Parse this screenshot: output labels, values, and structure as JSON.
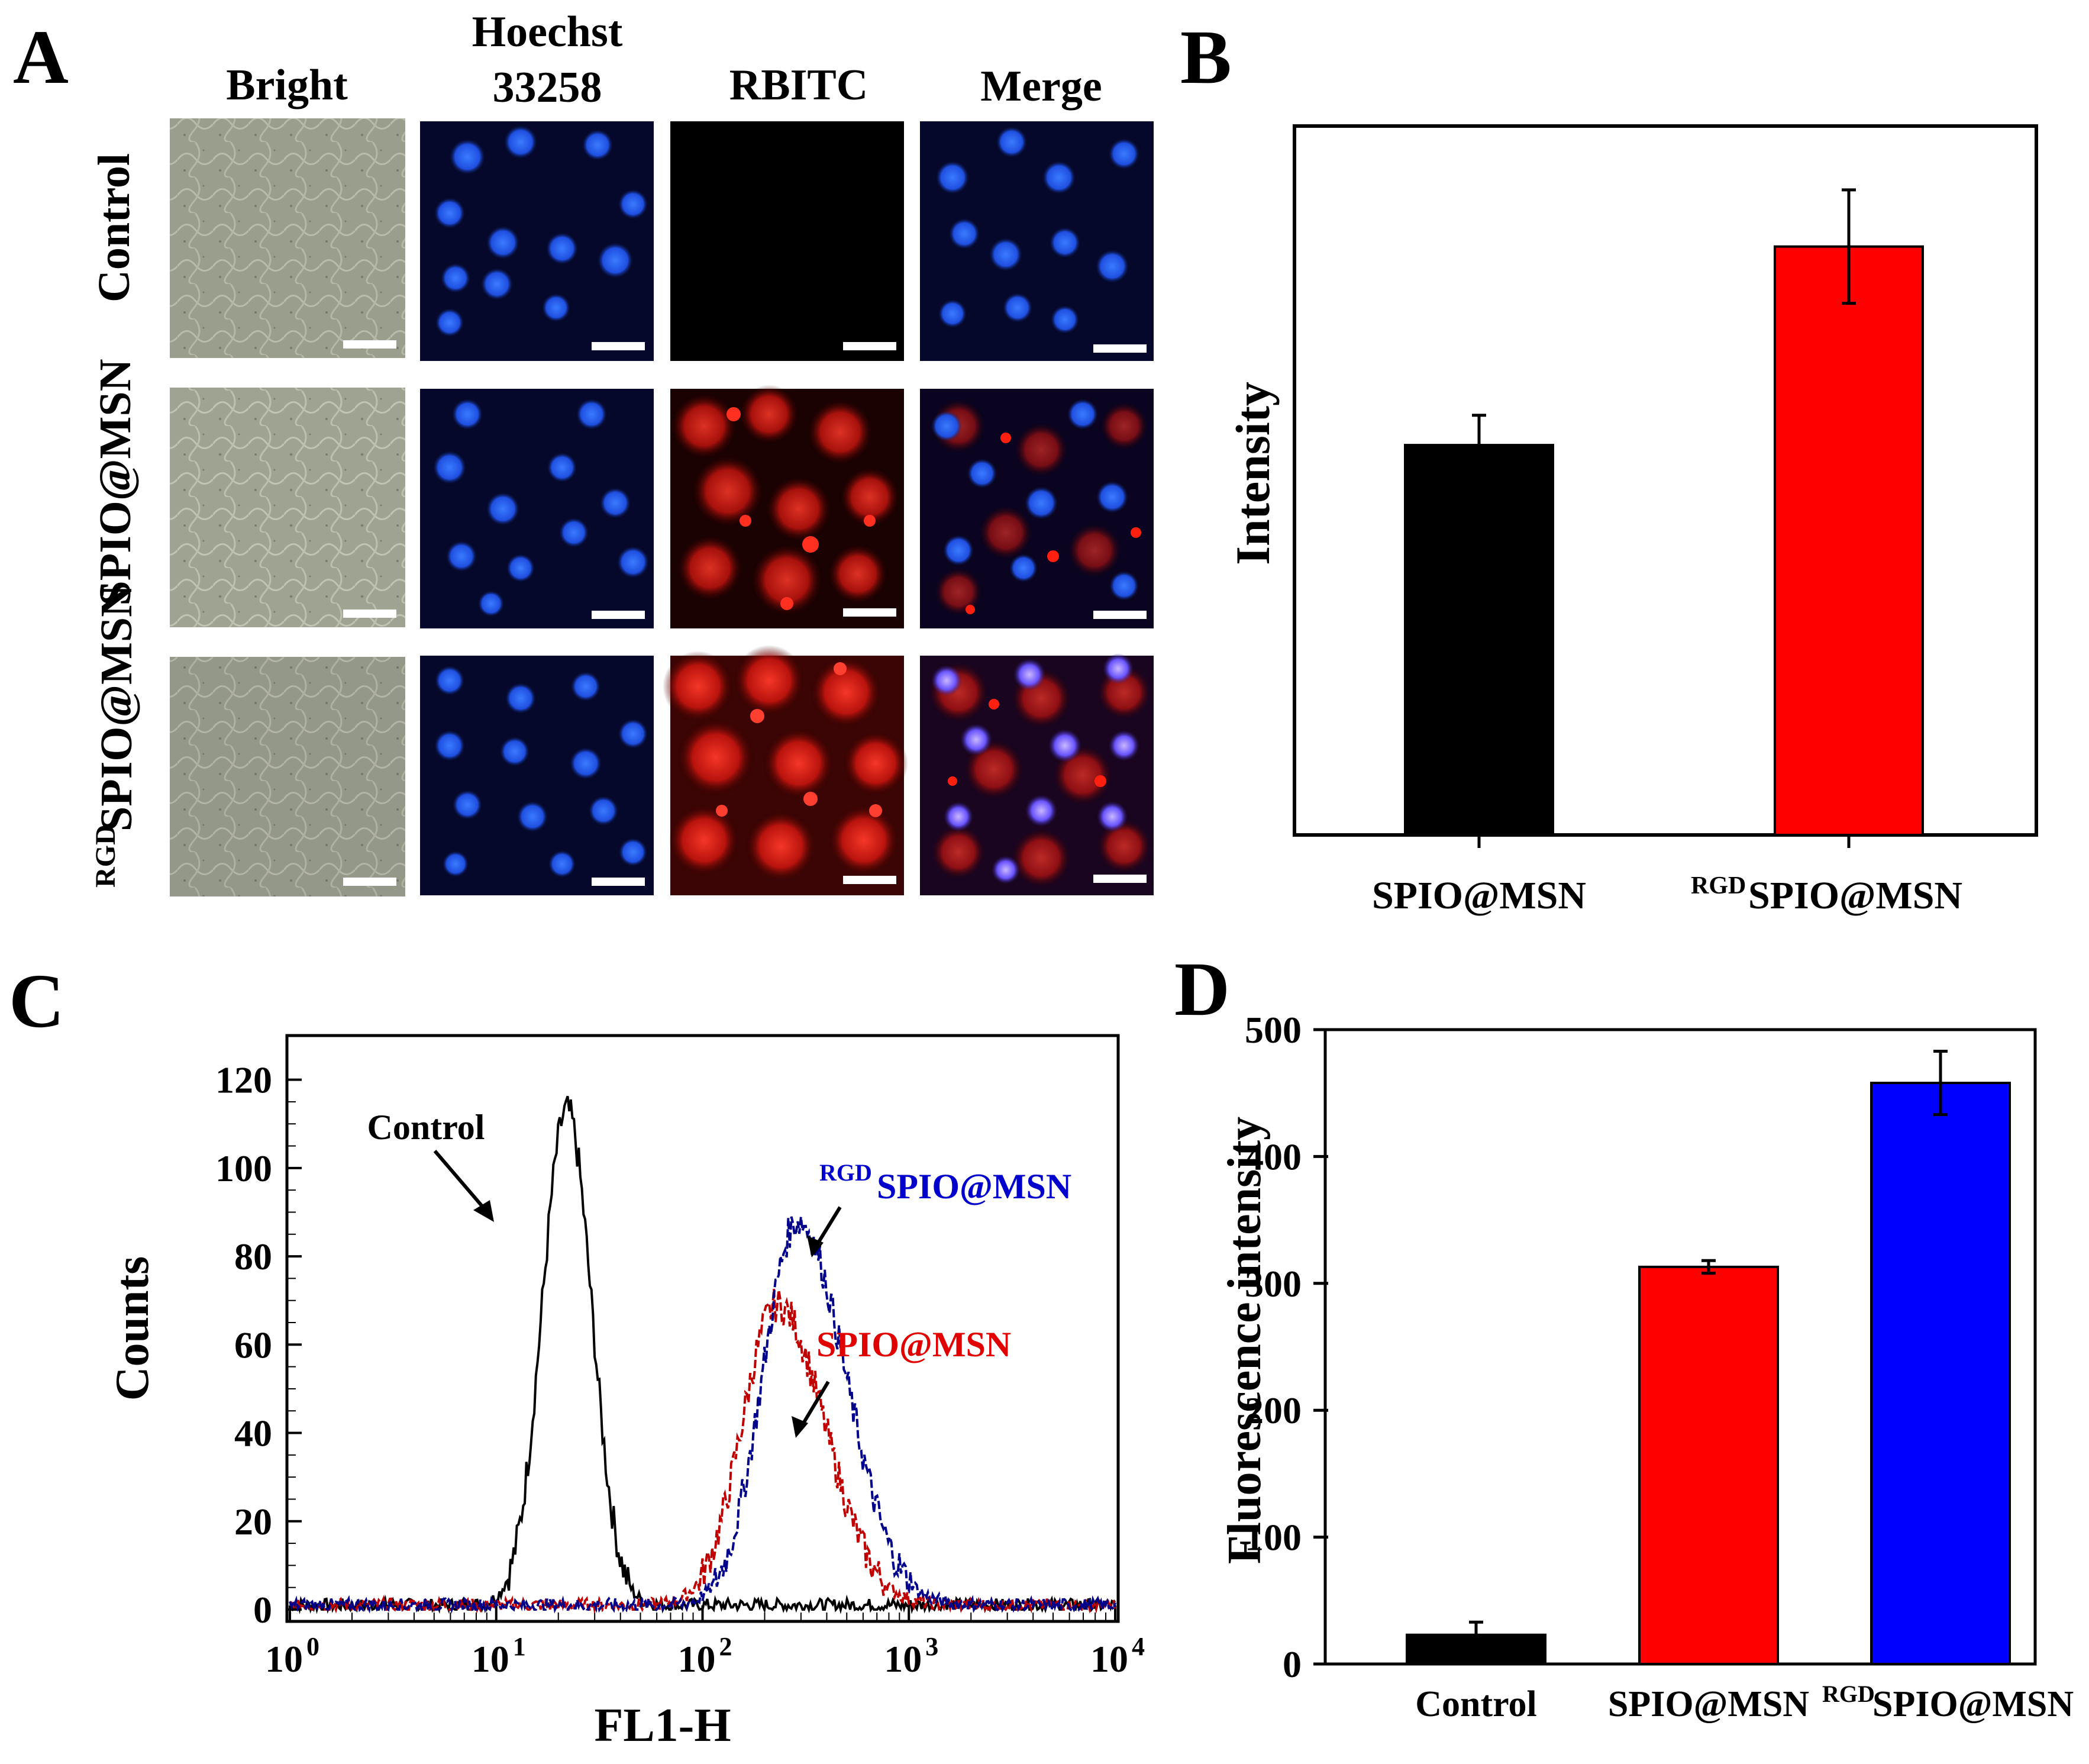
{
  "panels": {
    "A": {
      "label": "A",
      "columns": [
        "Bright",
        "Hoechst",
        "33258",
        "RBITC",
        "Merge"
      ],
      "rows": [
        "Control",
        "SPIO@MSN",
        "RGD",
        "SPIO@MSN"
      ]
    },
    "B": {
      "label": "B"
    },
    "C": {
      "label": "C"
    },
    "D": {
      "label": "D"
    }
  },
  "chart_data": [
    {
      "panel": "B",
      "type": "bar",
      "categories": [
        "SPIO@MSN",
        "SPIO@MSN"
      ],
      "category_superscripts": [
        "",
        "RGD"
      ],
      "values": [
        0.55,
        0.83
      ],
      "errors": [
        0.042,
        0.08
      ],
      "colors": [
        "#000000",
        "#ff0000"
      ],
      "ylabel": "Intensity",
      "ylim": [
        0,
        1
      ]
    },
    {
      "panel": "C",
      "type": "line",
      "xscale": "log",
      "xlabel": "FL1-H",
      "ylabel": "Counts",
      "xlim": [
        1,
        10000
      ],
      "ylim": [
        0,
        130
      ],
      "yticks": [
        0,
        20,
        40,
        60,
        80,
        100,
        120
      ],
      "xticks": [
        "10",
        "10",
        "10",
        "10",
        "10"
      ],
      "xtick_exponents": [
        "0",
        "1",
        "2",
        "3",
        "4"
      ],
      "series": [
        {
          "name": "Control",
          "color": "#000000",
          "peak_x": 22,
          "peak_y": 112,
          "sigma_log": 0.12
        },
        {
          "name": "SPIO@MSN",
          "color": "#c00000",
          "peak_x": 230,
          "peak_y": 68,
          "sigma_log": 0.17
        },
        {
          "name": "SPIO@MSN",
          "superscript": "RGD",
          "color": "#00008b",
          "peak_x": 290,
          "peak_y": 87,
          "sigma_log": 0.17
        }
      ],
      "annotations": [
        {
          "text": "Control",
          "superscript": "",
          "color": "#000000"
        },
        {
          "text": "SPIO@MSN",
          "superscript": "RGD",
          "color": "#0000cc"
        },
        {
          "text": "SPIO@MSN",
          "superscript": "",
          "color": "#e00000"
        }
      ]
    },
    {
      "panel": "D",
      "type": "bar",
      "categories": [
        "Control",
        "SPIO@MSN",
        "SPIO@MSN"
      ],
      "category_superscripts": [
        "",
        "",
        "RGD"
      ],
      "values": [
        23,
        313,
        458
      ],
      "errors": [
        10,
        5,
        25
      ],
      "colors": [
        "#000000",
        "#ff0000",
        "#0000ff"
      ],
      "ylabel": "Fluorescence intensity",
      "ylim": [
        0,
        500
      ],
      "yticks": [
        0,
        100,
        200,
        300,
        400,
        500
      ],
      "ytick_labels": [
        "0",
        "100",
        "200",
        "300",
        "400",
        "500"
      ]
    }
  ]
}
